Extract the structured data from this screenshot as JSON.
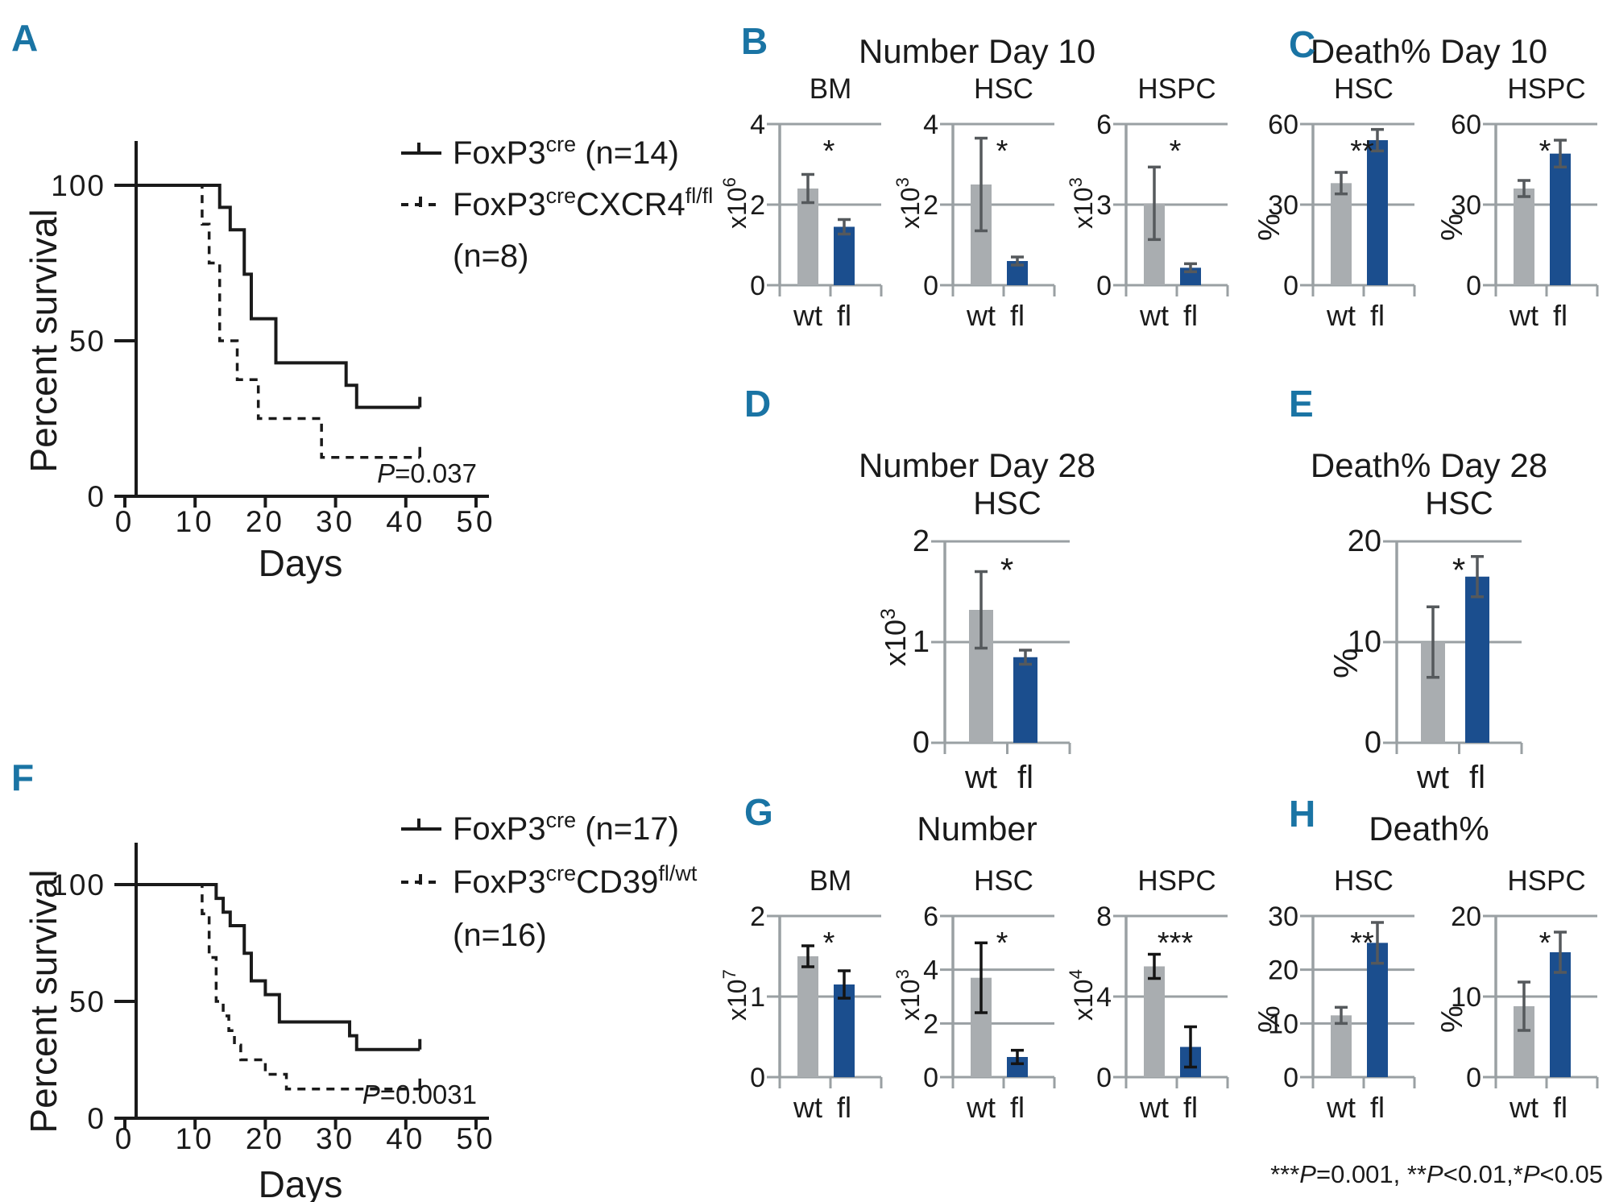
{
  "colors": {
    "panel_letter": "#1a74a4",
    "bar_wt": "#a9adb0",
    "bar_fl": "#1b4e8e",
    "axis_gray": "#9aa0a3",
    "km_black": "#1a1a1a"
  },
  "chart_data": [
    {
      "id": "A",
      "type": "line",
      "subtype": "kaplan_meier",
      "xlabel": "Days",
      "ylabel": "Percent survival",
      "xlim": [
        0,
        50
      ],
      "ylim": [
        0,
        100
      ],
      "xticks": [
        0,
        10,
        20,
        30,
        40,
        50
      ],
      "yticks": [
        0,
        50,
        100
      ],
      "p_label": "P",
      "p_value": "=0.037",
      "legend": [
        {
          "style": "solid",
          "segments": [
            {
              "t": "FoxP3"
            },
            {
              "t": "cre",
              "sup": true
            },
            {
              "t": " (n=14)"
            }
          ]
        },
        {
          "style": "dashed",
          "segments": [
            {
              "t": "FoxP3"
            },
            {
              "t": "cre",
              "sup": true
            },
            {
              "t": "CXCR4"
            },
            {
              "t": "fl/fl",
              "sup": true
            }
          ]
        },
        {
          "style": "none",
          "segments": [
            {
              "t": "(n=8)"
            }
          ]
        }
      ],
      "series": [
        {
          "name": "FoxP3cre",
          "n": 14,
          "style": "solid",
          "points": [
            [
              0,
              100
            ],
            [
              13.5,
              100
            ],
            [
              13.5,
              92.9
            ],
            [
              15,
              92.9
            ],
            [
              15,
              85.7
            ],
            [
              17,
              85.7
            ],
            [
              17,
              71.4
            ],
            [
              18,
              71.4
            ],
            [
              18,
              57.1
            ],
            [
              21.5,
              57.1
            ],
            [
              21.5,
              42.9
            ],
            [
              31.5,
              42.9
            ],
            [
              31.5,
              35.7
            ],
            [
              33,
              35.7
            ],
            [
              33,
              28.6
            ],
            [
              42,
              28.6
            ]
          ]
        },
        {
          "name": "FoxP3creCXCR4fl/fl",
          "n": 8,
          "style": "dashed",
          "points": [
            [
              0,
              100
            ],
            [
              11,
              100
            ],
            [
              11,
              87.5
            ],
            [
              12,
              87.5
            ],
            [
              12,
              75
            ],
            [
              13.5,
              75
            ],
            [
              13.5,
              50
            ],
            [
              16,
              50
            ],
            [
              16,
              37.5
            ],
            [
              19,
              37.5
            ],
            [
              19,
              25
            ],
            [
              28,
              25
            ],
            [
              28,
              12.5
            ],
            [
              42,
              12.5
            ]
          ]
        }
      ]
    },
    {
      "id": "B",
      "type": "bar",
      "title": "Number  Day 10",
      "err_color": "#55595c",
      "charts": [
        {
          "name": "BM",
          "unit_base": "x10",
          "unit_exp": "6",
          "yticks": [
            0,
            2,
            4
          ],
          "categories": [
            "wt",
            "fl"
          ],
          "values": [
            2.4,
            1.45
          ],
          "errors": [
            0.35,
            0.18
          ],
          "sig": "*"
        },
        {
          "name": "HSC",
          "unit_base": "x10",
          "unit_exp": "3",
          "yticks": [
            0,
            2,
            4
          ],
          "categories": [
            "wt",
            "fl"
          ],
          "values": [
            2.5,
            0.6
          ],
          "errors": [
            1.15,
            0.1
          ],
          "sig": "*"
        },
        {
          "name": "HSPC",
          "unit_base": "x10",
          "unit_exp": "3",
          "yticks": [
            0,
            3,
            6
          ],
          "categories": [
            "wt",
            "fl"
          ],
          "values": [
            3.05,
            0.65
          ],
          "errors": [
            1.35,
            0.15
          ],
          "sig": "*"
        }
      ]
    },
    {
      "id": "C",
      "type": "bar",
      "title": "Death%  Day 10",
      "err_color": "#55595c",
      "charts": [
        {
          "name": "HSC",
          "ylab": "%",
          "yticks": [
            0,
            30,
            60
          ],
          "categories": [
            "wt",
            "fl"
          ],
          "values": [
            38,
            54
          ],
          "errors": [
            4,
            4
          ],
          "sig": "**"
        },
        {
          "name": "HSPC",
          "ylab": "%",
          "yticks": [
            0,
            30,
            60
          ],
          "categories": [
            "wt",
            "fl"
          ],
          "values": [
            36,
            49
          ],
          "errors": [
            3,
            5
          ],
          "sig": "*"
        }
      ]
    },
    {
      "id": "D",
      "type": "bar",
      "title": "Number  Day 28",
      "size": "large",
      "err_color": "#55595c",
      "charts": [
        {
          "name": "HSC",
          "unit_base": "x10",
          "unit_exp": "3",
          "yticks": [
            0,
            1,
            2
          ],
          "categories": [
            "wt",
            "fl"
          ],
          "values": [
            1.32,
            0.85
          ],
          "errors": [
            0.38,
            0.07
          ],
          "sig": "*"
        }
      ]
    },
    {
      "id": "E",
      "type": "bar",
      "title": "Death%  Day 28",
      "size": "large",
      "err_color": "#55595c",
      "charts": [
        {
          "name": "HSC",
          "ylab": "%",
          "yticks": [
            0,
            10,
            20
          ],
          "categories": [
            "wt",
            "fl"
          ],
          "values": [
            10,
            16.5
          ],
          "errors": [
            3.5,
            2
          ],
          "sig": "*"
        }
      ]
    },
    {
      "id": "F",
      "type": "line",
      "subtype": "kaplan_meier",
      "xlabel": "Days",
      "ylabel": "Percent survival",
      "xlim": [
        0,
        50
      ],
      "ylim": [
        0,
        100
      ],
      "xticks": [
        0,
        10,
        20,
        30,
        40,
        50
      ],
      "yticks": [
        0,
        50,
        100
      ],
      "p_label": "P",
      "p_value": "=0.0031",
      "legend": [
        {
          "style": "solid",
          "segments": [
            {
              "t": "FoxP3"
            },
            {
              "t": "cre",
              "sup": true
            },
            {
              "t": " (n=17)"
            }
          ]
        },
        {
          "style": "dashed",
          "segments": [
            {
              "t": "FoxP3"
            },
            {
              "t": "cre",
              "sup": true
            },
            {
              "t": "CD39"
            },
            {
              "t": "fl/wt",
              "sup": true
            }
          ]
        },
        {
          "style": "none",
          "segments": [
            {
              "t": "(n=16)"
            }
          ]
        }
      ],
      "series": [
        {
          "name": "FoxP3cre",
          "n": 17,
          "style": "solid",
          "points": [
            [
              0,
              100
            ],
            [
              13,
              100
            ],
            [
              13,
              94.1
            ],
            [
              14,
              94.1
            ],
            [
              14,
              88.2
            ],
            [
              15,
              88.2
            ],
            [
              15,
              82.4
            ],
            [
              17,
              82.4
            ],
            [
              17,
              70.6
            ],
            [
              18,
              70.6
            ],
            [
              18,
              58.8
            ],
            [
              20,
              58.8
            ],
            [
              20,
              52.9
            ],
            [
              22,
              52.9
            ],
            [
              22,
              41.2
            ],
            [
              32,
              41.2
            ],
            [
              32,
              35.3
            ],
            [
              33,
              35.3
            ],
            [
              33,
              29.4
            ],
            [
              42,
              29.4
            ]
          ]
        },
        {
          "name": "FoxP3creCD39fl/wt",
          "n": 16,
          "style": "dashed",
          "points": [
            [
              0,
              100
            ],
            [
              11,
              100
            ],
            [
              11,
              87.5
            ],
            [
              12,
              87.5
            ],
            [
              12,
              68.8
            ],
            [
              13,
              68.8
            ],
            [
              13,
              50
            ],
            [
              14,
              50
            ],
            [
              14,
              43.8
            ],
            [
              14.8,
              43.8
            ],
            [
              14.8,
              37.5
            ],
            [
              15.6,
              37.5
            ],
            [
              15.6,
              31.3
            ],
            [
              16.5,
              31.3
            ],
            [
              16.5,
              25
            ],
            [
              20,
              25
            ],
            [
              20,
              18.8
            ],
            [
              23,
              18.8
            ],
            [
              23,
              12.5
            ],
            [
              42,
              12.5
            ]
          ]
        }
      ]
    },
    {
      "id": "G",
      "type": "bar",
      "title": "Number",
      "err_color": "#141414",
      "charts": [
        {
          "name": "BM",
          "unit_base": "x10",
          "unit_exp": "7",
          "yticks": [
            0,
            1,
            2
          ],
          "categories": [
            "wt",
            "fl"
          ],
          "values": [
            1.5,
            1.15
          ],
          "errors": [
            0.13,
            0.17
          ],
          "sig": "*"
        },
        {
          "name": "HSC",
          "unit_base": "x10",
          "unit_exp": "3",
          "yticks": [
            0,
            2,
            4,
            6
          ],
          "categories": [
            "wt",
            "fl"
          ],
          "values": [
            3.7,
            0.75
          ],
          "errors": [
            1.3,
            0.25
          ],
          "sig": "*"
        },
        {
          "name": "HSPC",
          "unit_base": "x10",
          "unit_exp": "4",
          "yticks": [
            0,
            4,
            8
          ],
          "categories": [
            "wt",
            "fl"
          ],
          "values": [
            5.5,
            1.5
          ],
          "errors": [
            0.6,
            1.0
          ],
          "sig": "***"
        }
      ]
    },
    {
      "id": "H",
      "type": "bar",
      "title": "Death%",
      "err_color": "#55595c",
      "charts": [
        {
          "name": "HSC",
          "ylab": "%",
          "yticks": [
            0,
            10,
            20,
            30
          ],
          "categories": [
            "wt",
            "fl"
          ],
          "values": [
            11.5,
            25
          ],
          "errors": [
            1.5,
            3.8
          ],
          "sig": "**"
        },
        {
          "name": "HSPC",
          "ylab": "%",
          "yticks": [
            0,
            10,
            20
          ],
          "categories": [
            "wt",
            "fl"
          ],
          "values": [
            8.8,
            15.5
          ],
          "errors": [
            3,
            2.5
          ],
          "sig": "*"
        }
      ]
    }
  ],
  "footnote": {
    "segments": [
      {
        "t": "***"
      },
      {
        "t": "P",
        "i": true
      },
      {
        "t": "=0.001,  "
      },
      {
        "t": "**"
      },
      {
        "t": "P",
        "i": true
      },
      {
        "t": "<0.01,"
      },
      {
        "t": "*"
      },
      {
        "t": "P",
        "i": true
      },
      {
        "t": "<0.05"
      }
    ]
  }
}
